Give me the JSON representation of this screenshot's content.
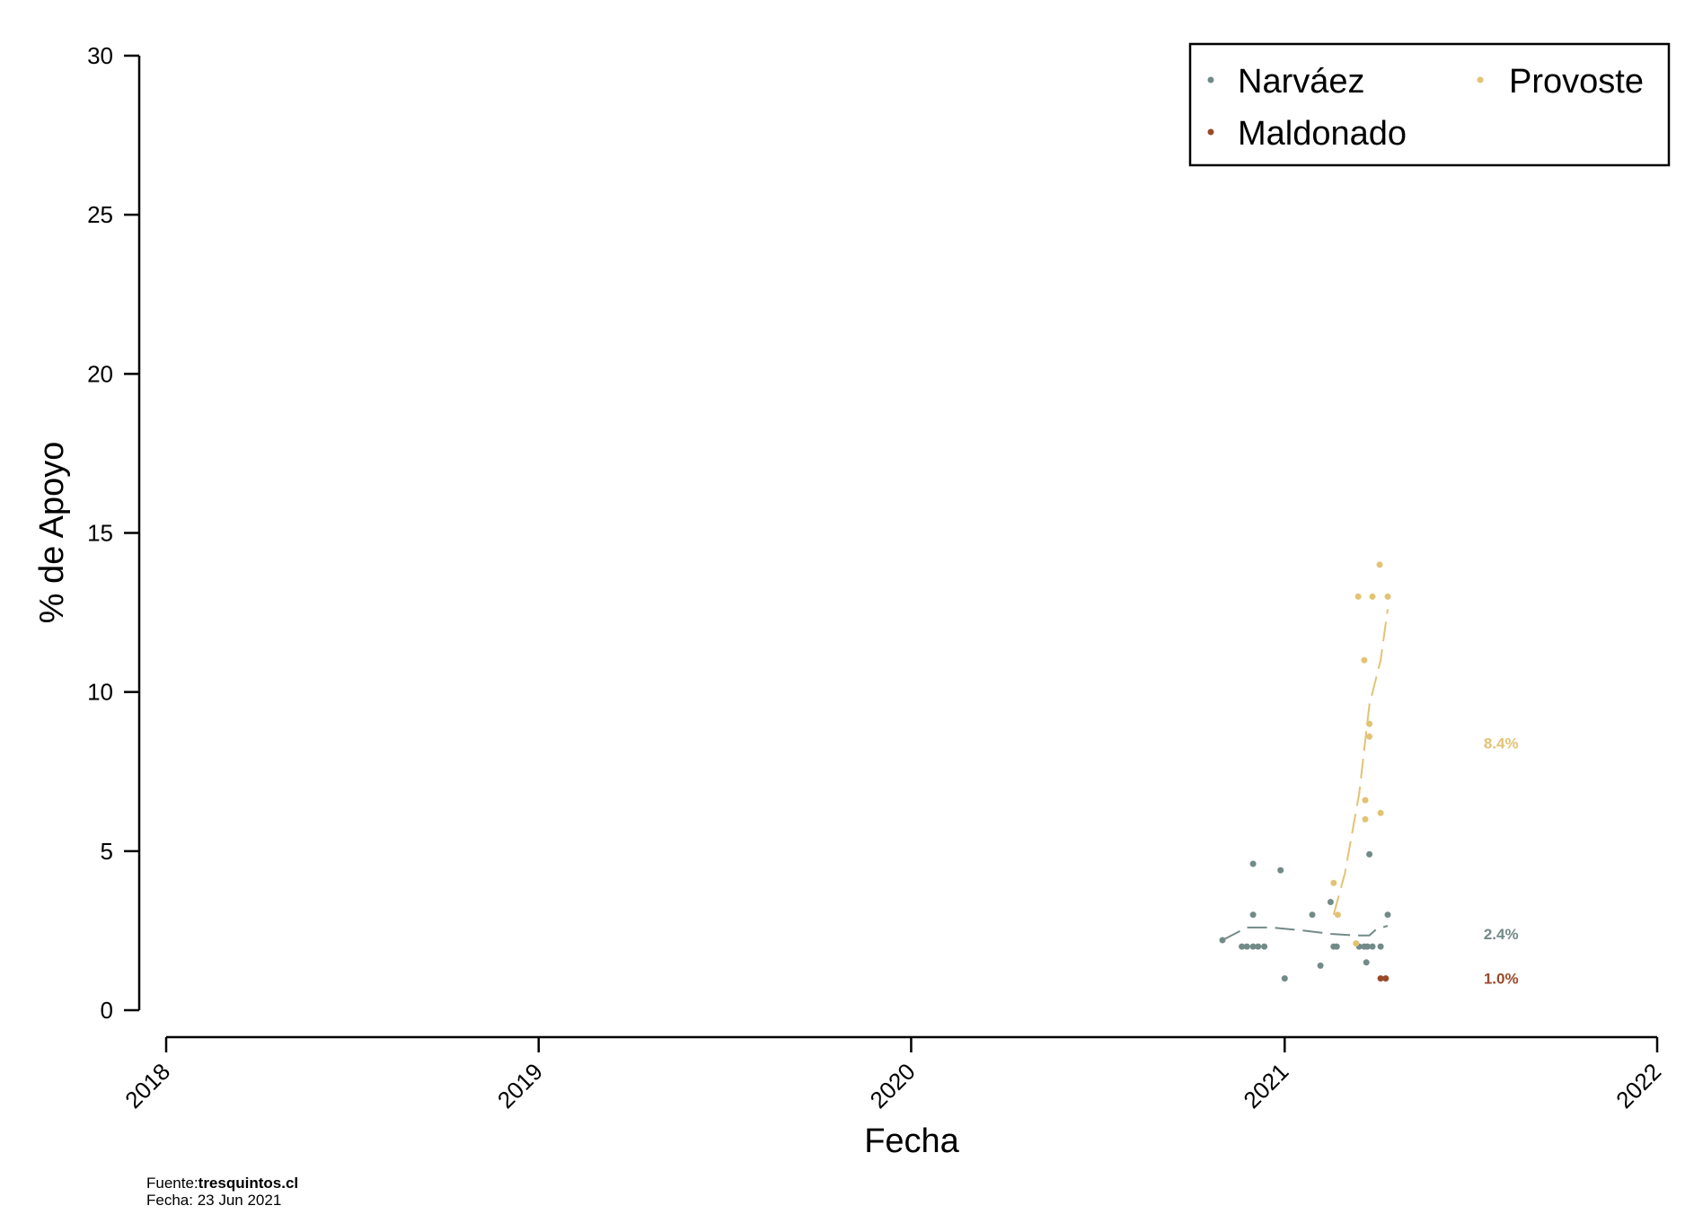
{
  "chart_data": {
    "type": "scatter",
    "xlabel": "Fecha",
    "ylabel": "% de Apoyo",
    "ylim": [
      0,
      30
    ],
    "yticks": [
      0,
      5,
      10,
      15,
      20,
      25,
      30
    ],
    "xlim": [
      "2018-01-01",
      "2022-01-01"
    ],
    "xticks": [
      "2018",
      "2019",
      "2020",
      "2021",
      "2022"
    ],
    "grid": false,
    "legend_position": "top-right",
    "series": [
      {
        "name": "Narváez",
        "color": "#728a88",
        "end_label": "2.4%",
        "end_value": 2.4,
        "points": [
          [
            "2020-11-01",
            2.2
          ],
          [
            "2020-11-20",
            2.0
          ],
          [
            "2020-11-25",
            2.0
          ],
          [
            "2020-12-01",
            4.6
          ],
          [
            "2020-12-01",
            3.0
          ],
          [
            "2020-12-01",
            2.0
          ],
          [
            "2020-12-06",
            2.0
          ],
          [
            "2020-12-12",
            2.0
          ],
          [
            "2020-12-28",
            4.4
          ],
          [
            "2021-01-01",
            1.0
          ],
          [
            "2021-01-28",
            3.0
          ],
          [
            "2021-02-05",
            1.4
          ],
          [
            "2021-02-15",
            3.4
          ],
          [
            "2021-02-18",
            2.0
          ],
          [
            "2021-02-21",
            2.0
          ],
          [
            "2021-03-15",
            2.0
          ],
          [
            "2021-03-20",
            2.0
          ],
          [
            "2021-03-22",
            1.5
          ],
          [
            "2021-03-23",
            2.0
          ],
          [
            "2021-03-25",
            4.9
          ],
          [
            "2021-03-28",
            2.0
          ],
          [
            "2021-04-05",
            2.0
          ],
          [
            "2021-04-12",
            3.0
          ]
        ],
        "trend": [
          [
            "2020-11-01",
            2.2
          ],
          [
            "2020-11-25",
            2.6
          ],
          [
            "2020-12-20",
            2.6
          ],
          [
            "2021-01-20",
            2.5
          ],
          [
            "2021-02-15",
            2.4
          ],
          [
            "2021-03-10",
            2.35
          ],
          [
            "2021-03-25",
            2.35
          ],
          [
            "2021-04-01",
            2.55
          ],
          [
            "2021-04-12",
            2.65
          ]
        ]
      },
      {
        "name": "Provoste",
        "color": "#e3c373",
        "end_label": "8.4%",
        "end_value": 8.4,
        "points": [
          [
            "2021-02-18",
            4.0
          ],
          [
            "2021-02-22",
            3.0
          ],
          [
            "2021-03-12",
            2.1
          ],
          [
            "2021-03-14",
            13.0
          ],
          [
            "2021-03-20",
            11.0
          ],
          [
            "2021-03-21",
            6.6
          ],
          [
            "2021-03-21",
            6.0
          ],
          [
            "2021-03-25",
            9.0
          ],
          [
            "2021-03-25",
            8.6
          ],
          [
            "2021-03-28",
            13.0
          ],
          [
            "2021-04-04",
            14.0
          ],
          [
            "2021-04-05",
            6.2
          ],
          [
            "2021-04-12",
            13.0
          ]
        ],
        "trend": [
          [
            "2021-02-18",
            3.0
          ],
          [
            "2021-03-01",
            4.3
          ],
          [
            "2021-03-15",
            6.8
          ],
          [
            "2021-03-25",
            9.6
          ],
          [
            "2021-04-05",
            11.0
          ],
          [
            "2021-04-12",
            12.6
          ]
        ]
      },
      {
        "name": "Maldonado",
        "color": "#9a4a2a",
        "end_label": "1.0%",
        "end_value": 1.0,
        "points": [
          [
            "2021-04-05",
            1.0
          ],
          [
            "2021-04-10",
            1.0
          ]
        ],
        "trend": []
      }
    ],
    "end_label_date": "2021-07-15"
  },
  "footer": {
    "source_prefix": "Fuente:",
    "source_name": "tresquintos.cl",
    "date_line": "Fecha: 23 Jun 2021"
  }
}
